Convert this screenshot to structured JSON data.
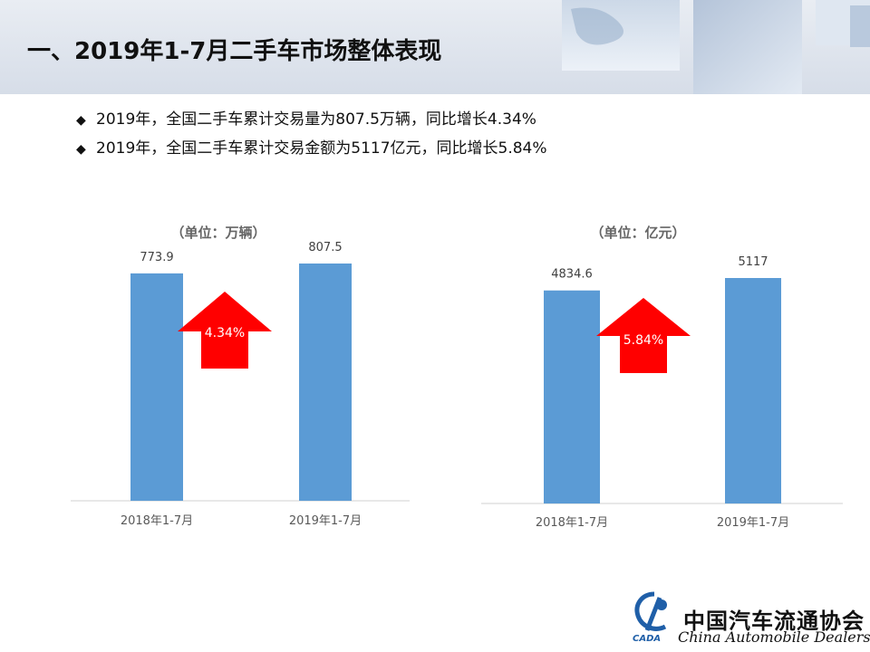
{
  "slide": {
    "title": "一、2019年1-7月二手车市场整体表现",
    "bullets": [
      {
        "marker": "◆",
        "text": "2019年，全国二手车累计交易量为807.5万辆，同比增长4.34%"
      },
      {
        "marker": "◆",
        "text": "2019年，全国二手车累计交易金额为5117亿元，同比增长5.84%"
      }
    ]
  },
  "chart_data": [
    {
      "type": "bar",
      "unit_label": "（单位：万辆）",
      "categories": [
        "2018年1-7月",
        "2019年1-7月"
      ],
      "values": [
        773.9,
        807.5
      ],
      "value_labels": [
        "773.9",
        "807.5"
      ],
      "growth_label": "4.34%",
      "bar_color": "#5b9bd5",
      "arrow_color": "#ff0000"
    },
    {
      "type": "bar",
      "unit_label": "（单位：亿元）",
      "categories": [
        "2018年1-7月",
        "2019年1-7月"
      ],
      "values": [
        4834.6,
        5117
      ],
      "value_labels": [
        "4834.6",
        "5117"
      ],
      "growth_label": "5.84%",
      "bar_color": "#5b9bd5",
      "arrow_color": "#ff0000"
    }
  ],
  "footer": {
    "logo_text": "CADA",
    "org_name": "中国汽车流通协会",
    "org_name_en": "China Automobile Dealers"
  }
}
